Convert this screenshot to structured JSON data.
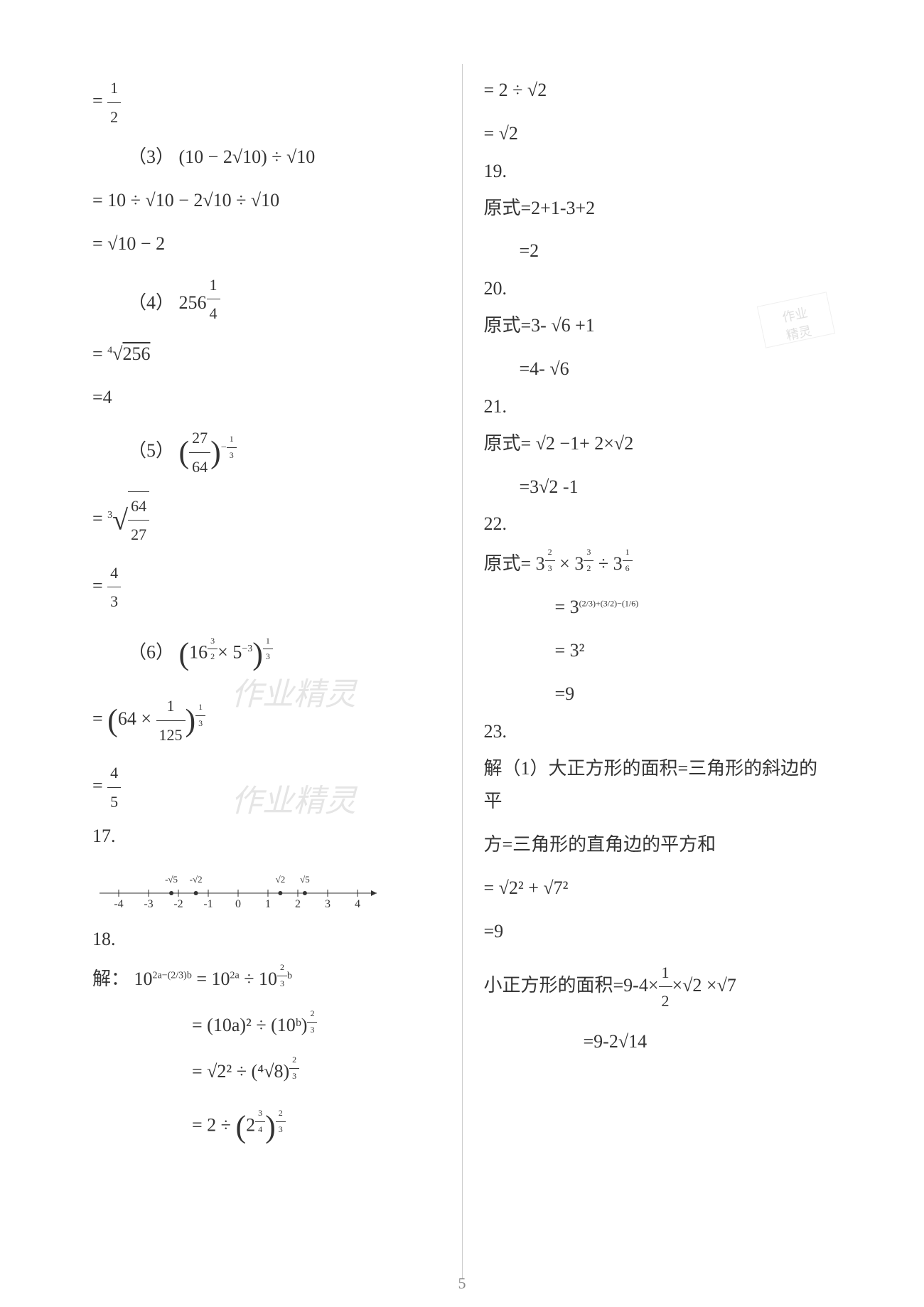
{
  "colors": {
    "background": "#ffffff",
    "text": "#333333",
    "divider": "#cccccc",
    "watermark": "#e5e5e5",
    "page_num": "#888888",
    "axis": "#333333"
  },
  "fontsize": {
    "body": 26,
    "frac": 22,
    "super": 14,
    "watermark": 44
  },
  "page_number": "5",
  "watermark_text": "作业精灵",
  "stamp_text1": "作业",
  "stamp_text2": "精灵",
  "left": {
    "l1": "=",
    "l1_frac_num": "1",
    "l1_frac_den": "2",
    "l2": "（3）",
    "l2_expr": "(10 − 2√10) ÷ √10",
    "l3": "= 10 ÷ √10 − 2√10 ÷ √10",
    "l4": "= √10 − 2",
    "l5": "（4）  256",
    "l5_exp_num": "1",
    "l5_exp_den": "4",
    "l6": "= ",
    "l6_root": "4",
    "l6_radicand": "256",
    "l7": "=4",
    "l8": "（5）",
    "l8_frac_num": "27",
    "l8_frac_den": "64",
    "l8_exp": "−",
    "l8_exp_num": "1",
    "l8_exp_den": "3",
    "l9": "= ",
    "l9_root": "3",
    "l9_frac_num": "64",
    "l9_frac_den": "27",
    "l10": "= ",
    "l10_frac_num": "4",
    "l10_frac_den": "3",
    "l11": "（6）",
    "l11_base": "16",
    "l11_exp1_num": "3",
    "l11_exp1_den": "2",
    "l11_mul": "× 5",
    "l11_exp2": "−3",
    "l11_outer_num": "1",
    "l11_outer_den": "3",
    "l12": "= ",
    "l12_a": "64 ×",
    "l12_frac_num": "1",
    "l12_frac_den": "125",
    "l12_exp_num": "1",
    "l12_exp_den": "3",
    "l13": "= ",
    "l13_frac_num": "4",
    "l13_frac_den": "5",
    "p17": "17.",
    "number_line": {
      "ticks": [
        -4,
        -3,
        -2,
        -1,
        0,
        1,
        2,
        3,
        4
      ],
      "points": [
        {
          "label": "-√5",
          "x": -2.236
        },
        {
          "label": "-√2",
          "x": -1.414
        },
        {
          "label": "√2",
          "x": 1.414
        },
        {
          "label": "√5",
          "x": 2.236
        }
      ],
      "axis_color": "#333333",
      "bg": "#ffffff"
    },
    "p18": "18.",
    "l18a_pre": "解：",
    "l18a": "10",
    "l18a_exp": "2a−(2/3)b",
    "l18a_eq": " = 10",
    "l18a_exp2": "2a",
    "l18a_div": " ÷ 10",
    "l18a_exp3_num": "2",
    "l18a_exp3_den": "3",
    "l18a_exp3_b": "b",
    "l18b": "= (10a)² ÷ (10ᵇ)",
    "l18b_exp_num": "2",
    "l18b_exp_den": "3",
    "l18c": "= √2² ÷ (⁴√8)",
    "l18c_exp_num": "2",
    "l18c_exp_den": "3",
    "l18d": "= 2 ÷ ",
    "l18d_base": "2",
    "l18d_exp1_num": "3",
    "l18d_exp1_den": "4",
    "l18d_exp2_num": "2",
    "l18d_exp2_den": "3"
  },
  "right": {
    "r1": "= 2 ÷ √2",
    "r2": "= √2",
    "p19": "19.",
    "r3": "原式=2+1-3+2",
    "r4": "=2",
    "p20": "20.",
    "r5": "原式=3- √6 +1",
    "r6": "=4- √6",
    "p21": "21.",
    "r7": "原式= √2 −1+ 2×√2",
    "r8": "=3√2 -1",
    "p22": "22.",
    "r9_pre": "原式= 3",
    "r9_e1n": "2",
    "r9_e1d": "3",
    "r9_mid1": " × 3",
    "r9_e2n": "3",
    "r9_e2d": "2",
    "r9_mid2": " ÷ 3",
    "r9_e3n": "1",
    "r9_e3d": "6",
    "r10_pre": "= 3",
    "r10_exp": "(2/3)+(3/2)−(1/6)",
    "r11": "= 3²",
    "r12": "=9",
    "p23": "23.",
    "r13": "解（1）大正方形的面积=三角形的斜边的平",
    "r14": "方=三角形的直角边的平方和",
    "r15": "= √2² + √7²",
    "r16": "=9",
    "r17_pre": "小正方形的面积=9-4×",
    "r17_frac_num": "1",
    "r17_frac_den": "2",
    "r17_post": "×√2 ×√7",
    "r18": "=9-2√14"
  }
}
